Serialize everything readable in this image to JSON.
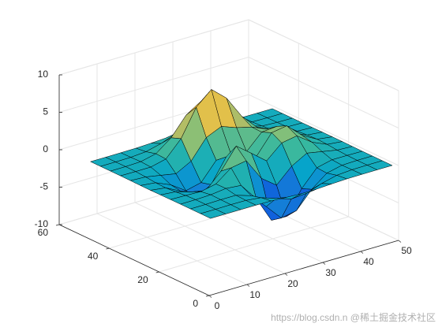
{
  "chart_data": {
    "type": "surface",
    "x": [
      1,
      5,
      9,
      13,
      17,
      21,
      25,
      29,
      33,
      37,
      41,
      45,
      49
    ],
    "y": [
      1,
      5,
      9,
      13,
      17,
      21,
      25,
      29,
      33,
      37,
      41,
      45,
      49
    ],
    "z": [
      [
        0,
        0,
        0,
        0,
        -0.03,
        -0.14,
        -0.24,
        -0.22,
        -0.11,
        -0.03,
        -0.01,
        0,
        0
      ],
      [
        0,
        0,
        0.02,
        0,
        -0.23,
        -0.91,
        -1.57,
        -1.41,
        -0.69,
        -0.18,
        -0.03,
        0,
        0
      ],
      [
        0,
        0.01,
        0.05,
        0.05,
        -0.59,
        -2.63,
        -4.75,
        -4.34,
        -2.1,
        -0.53,
        -0.06,
        0,
        0
      ],
      [
        0,
        0.01,
        0.08,
        0.33,
        0.15,
        -2.19,
        -5.68,
        -5.76,
        -2.64,
        -0.44,
        0.04,
        0.03,
        0
      ],
      [
        -0.01,
        -0.06,
        -0.13,
        0.3,
        1.86,
        2.22,
        -0.72,
        -2.22,
        -0.27,
        0.88,
        0.5,
        0.11,
        0.01
      ],
      [
        -0.02,
        -0.2,
        -0.8,
        -1.21,
        0.8,
        3.55,
        2,
        0.39,
        2.2,
        2.56,
        1.12,
        0.24,
        0.03
      ],
      [
        -0.04,
        -0.3,
        -1.33,
        -2.77,
        -1.65,
        1.48,
        0.98,
        0.38,
        2.94,
        3.27,
        1.41,
        0.3,
        0.03
      ],
      [
        -0.03,
        -0.25,
        -1.12,
        -2.49,
        -2,
        0.39,
        0.46,
        0.37,
        2.38,
        2.56,
        1.09,
        0.23,
        0.03
      ],
      [
        -0.01,
        -0.11,
        -0.48,
        -0.86,
        0.23,
        2.79,
        3.69,
        2.94,
        2.43,
        1.58,
        0.58,
        0.11,
        0.01
      ],
      [
        0,
        -0.02,
        -0.01,
        0.48,
        2.61,
        6.2,
        8,
        6.25,
        3.25,
        1.19,
        0.29,
        0.05,
        0
      ],
      [
        0,
        0.01,
        0.08,
        0.55,
        2.09,
        4.55,
        5.85,
        4.56,
        2.21,
        0.68,
        0.13,
        0.02,
        0
      ],
      [
        0,
        0,
        0.03,
        0.19,
        0.69,
        1.47,
        1.88,
        1.47,
        0.7,
        0.21,
        0.04,
        0,
        0
      ],
      [
        0,
        0,
        0.01,
        0.03,
        0.11,
        0.23,
        0.3,
        0.23,
        0.11,
        0.03,
        0.01,
        0,
        0
      ]
    ],
    "xlim": [
      0,
      50
    ],
    "ylim": [
      0,
      60
    ],
    "zlim": [
      -10,
      10
    ],
    "xticks": [
      0,
      10,
      20,
      30,
      40,
      50
    ],
    "yticks": [
      0,
      20,
      40,
      60
    ],
    "zticks": [
      -10,
      -5,
      0,
      5,
      10
    ],
    "grid": true,
    "colormap": [
      "#352a87",
      "#0f5cdd",
      "#1481d6",
      "#06a4ca",
      "#2eb7a4",
      "#87bf77",
      "#d1bb59",
      "#fec832",
      "#f9fb0e"
    ],
    "edge_color": "#000000",
    "watermark": "https://blog.csdn.n @稀土掘金技术社区"
  }
}
